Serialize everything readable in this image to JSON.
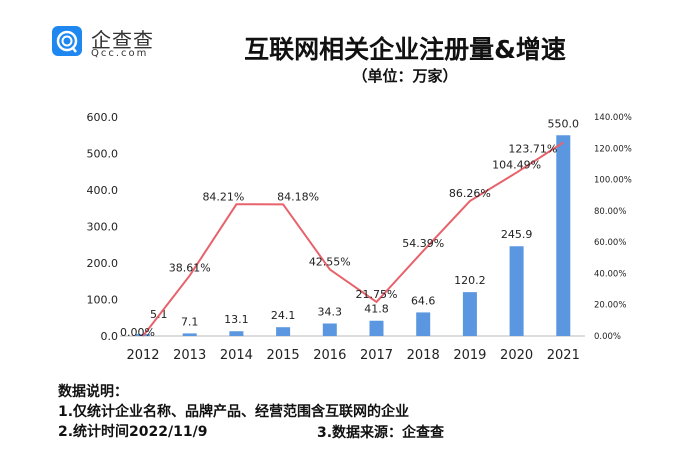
{
  "logo": {
    "name": "企查查",
    "sub": "Qcc.com",
    "color": "#1e88f0"
  },
  "chart_data": {
    "type": "bar+line",
    "title": "互联网相关企业注册量&增速",
    "subtitle": "（单位：万家）",
    "categories": [
      "2012",
      "2013",
      "2014",
      "2015",
      "2016",
      "2017",
      "2018",
      "2019",
      "2020",
      "2021"
    ],
    "series": [
      {
        "type": "bar",
        "axis": "left",
        "color": "#5b97e0",
        "values": [
          5.1,
          7.1,
          13.1,
          24.1,
          34.3,
          41.8,
          64.6,
          120.2,
          245.9,
          550.0
        ],
        "labels": [
          "5.1",
          "7.1",
          "13.1",
          "24.1",
          "34.3",
          "41.8",
          "64.6",
          "120.2",
          "245.9",
          "550.0"
        ]
      },
      {
        "type": "line",
        "axis": "right",
        "color": "#e8626b",
        "values": [
          0.0,
          38.61,
          84.21,
          84.18,
          42.55,
          21.75,
          54.39,
          86.26,
          104.49,
          123.71
        ],
        "labels": [
          "0.00%",
          "38.61%",
          "84.21%",
          "84.18%",
          "42.55%",
          "21.75%",
          "54.39%",
          "86.26%",
          "104.49%",
          "123.71%"
        ]
      }
    ],
    "left_axis": {
      "ylim": [
        0,
        600
      ],
      "ticks": [
        "0.0",
        "100.0",
        "200.0",
        "300.0",
        "400.0",
        "500.0",
        "600.0"
      ]
    },
    "right_axis": {
      "ylim": [
        0,
        140
      ],
      "ticks": [
        "0.00%",
        "20.00%",
        "40.00%",
        "60.00%",
        "80.00%",
        "100.00%",
        "120.00%",
        "140.00%"
      ]
    },
    "grid": false
  },
  "notes": {
    "heading": "数据说明：",
    "line1": "1.仅统计企业名称、品牌产品、经营范围含互联网的企业",
    "line2": "2.统计时间2022/11/9",
    "line3": "3.数据来源：企查查"
  }
}
